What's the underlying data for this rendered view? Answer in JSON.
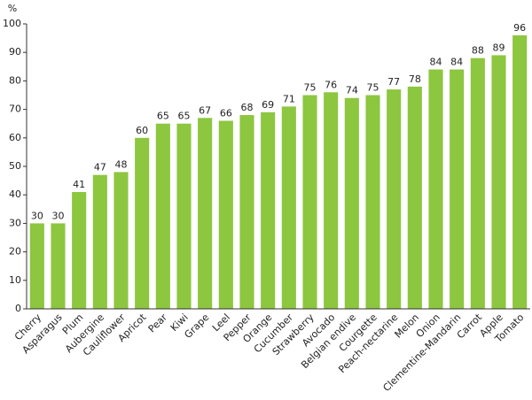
{
  "chart_data": {
    "type": "bar",
    "y_label": "%",
    "categories": [
      "Cherry",
      "Asparagus",
      "Plum",
      "Aubergine",
      "Cauliflower",
      "Apricot",
      "Pear",
      "Kiwi",
      "Grape",
      "Leel",
      "Pepper",
      "Orange",
      "Cucumber",
      "Strawberry",
      "Avocado",
      "Belgian endive",
      "Courgette",
      "Peach-nectarine",
      "Melon",
      "Onion",
      "Clementine-Mandarin",
      "Carrot",
      "Apple",
      "Tomato"
    ],
    "values": [
      30,
      30,
      41,
      47,
      48,
      60,
      65,
      65,
      67,
      66,
      68,
      69,
      71,
      75,
      76,
      74,
      75,
      77,
      78,
      84,
      84,
      88,
      89,
      96
    ],
    "color": "#8dc63f",
    "ylim": [
      0,
      100
    ],
    "yticks": [
      0,
      10,
      20,
      30,
      40,
      50,
      60,
      70,
      80,
      90,
      100
    ],
    "grid": false
  }
}
